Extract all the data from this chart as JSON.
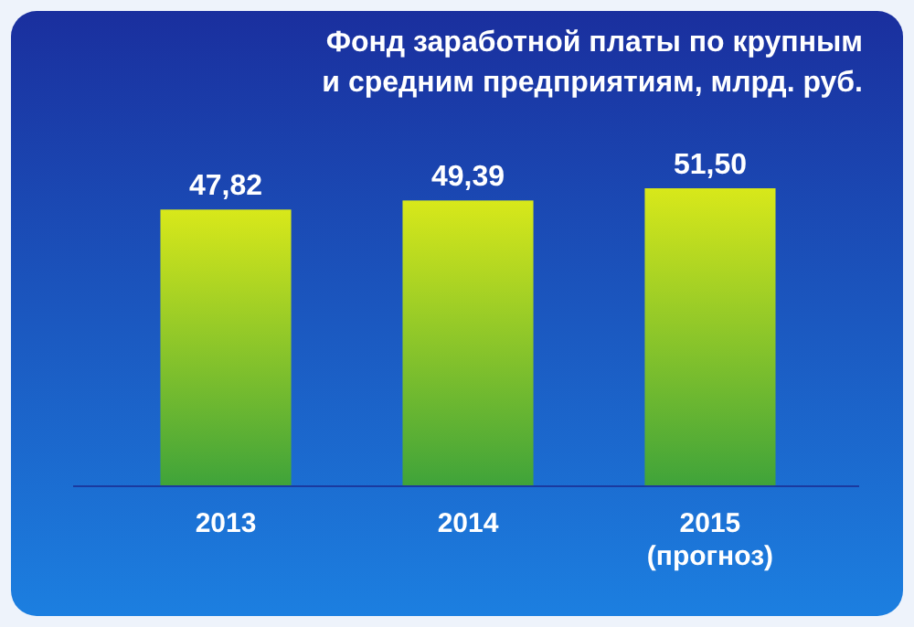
{
  "chart_data": {
    "type": "bar",
    "title": "Фонд заработной платы по крупным\nи средним предприятиям, млрд. руб.",
    "categories": [
      "2013",
      "2014",
      "2015\n(прогноз)"
    ],
    "values": [
      47.82,
      49.39,
      51.5
    ],
    "value_labels": [
      "47,82",
      "49,39",
      "51,50"
    ],
    "color": "#d8e81a"
  }
}
